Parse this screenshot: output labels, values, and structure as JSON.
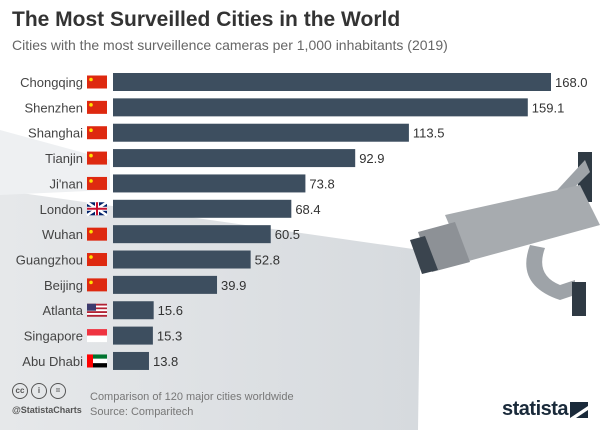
{
  "header": {
    "title": "The Most Surveilled Cities in the World",
    "subtitle": "Cities with the most surveillence cameras per 1,000 inhabitants (2019)"
  },
  "footer": {
    "note": "Comparison of 120 major cities worldwide",
    "source": "Source: Comparitech",
    "handle": "@StatistaCharts",
    "logo": "statista",
    "license_icons": [
      "cc-icon",
      "by-icon",
      "nd-icon"
    ]
  },
  "colors": {
    "bar": "#3d4e5f",
    "label": "#333333"
  },
  "chart_data": {
    "type": "bar",
    "orientation": "horizontal",
    "title": "The Most Surveilled Cities in the World",
    "subtitle": "Cities with the most surveillence cameras per 1,000 inhabitants (2019)",
    "categories": [
      "Chongqing",
      "Shenzhen",
      "Shanghai",
      "Tianjin",
      "Ji'nan",
      "London",
      "Wuhan",
      "Guangzhou",
      "Beijing",
      "Atlanta",
      "Singapore",
      "Abu Dhabi"
    ],
    "flags": [
      "cn",
      "cn",
      "cn",
      "cn",
      "cn",
      "gb",
      "cn",
      "cn",
      "cn",
      "us",
      "sg",
      "ae"
    ],
    "values": [
      168.0,
      159.1,
      113.5,
      92.9,
      73.8,
      68.4,
      60.5,
      52.8,
      39.9,
      15.6,
      15.3,
      13.8
    ],
    "xlim": [
      0,
      168
    ],
    "grid": false,
    "legend": "none"
  }
}
